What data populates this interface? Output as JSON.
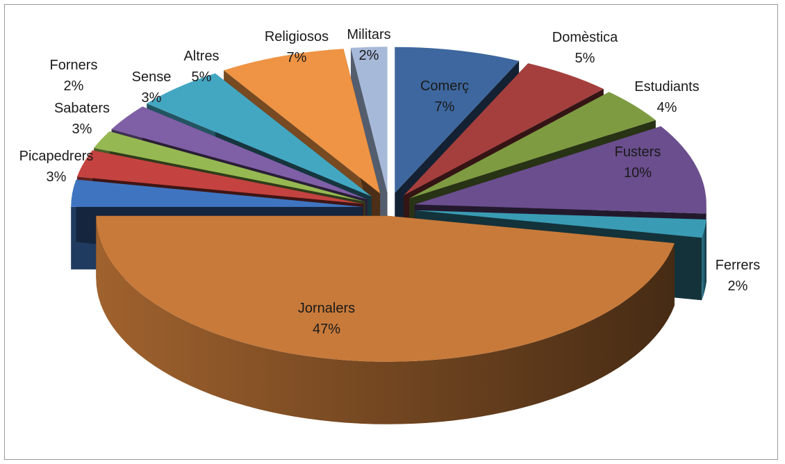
{
  "chart_data": {
    "type": "pie",
    "title": "",
    "legend": "none",
    "slices": [
      {
        "label": "Comerç",
        "value": 7,
        "pct_label": "7%",
        "color": "#3d679e"
      },
      {
        "label": "Domèstica",
        "value": 5,
        "pct_label": "5%",
        "color": "#a43f3d"
      },
      {
        "label": "Estudiants",
        "value": 4,
        "pct_label": "4%",
        "color": "#7e9b42"
      },
      {
        "label": "Fusters",
        "value": 10,
        "pct_label": "10%",
        "color": "#6a4e8d"
      },
      {
        "label": "Ferrers",
        "value": 2,
        "pct_label": "2%",
        "color": "#3a9bb4"
      },
      {
        "label": "Jornalers",
        "value": 47,
        "pct_label": "47%",
        "color": "#c87a3a"
      },
      {
        "label": "Picapedrers",
        "value": 3,
        "pct_label": "3%",
        "color": "#3f75c0"
      },
      {
        "label": "Sabaters",
        "value": 3,
        "pct_label": "3%",
        "color": "#c44340"
      },
      {
        "label": "Forners",
        "value": 2,
        "pct_label": "2%",
        "color": "#96b852"
      },
      {
        "label": "Sense",
        "value": 3,
        "pct_label": "3%",
        "color": "#7f5fa6"
      },
      {
        "label": "Altres",
        "value": 5,
        "pct_label": "5%",
        "color": "#44a7c2"
      },
      {
        "label": "Religiosos",
        "value": 7,
        "pct_label": "7%",
        "color": "#ee9444"
      },
      {
        "label": "Militars",
        "value": 2,
        "pct_label": "2%",
        "color": "#a7b9d9"
      }
    ]
  }
}
